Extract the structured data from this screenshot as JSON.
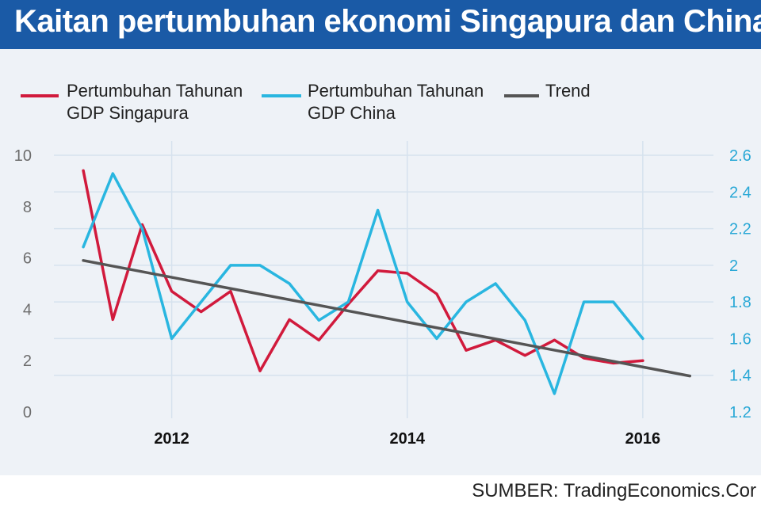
{
  "chart_data": {
    "type": "line",
    "title": "Kaitan pertumbuhan ekonomi Singapura dan China",
    "source": "SUMBER: TradingEconomics.Cor",
    "x": [
      2011.25,
      2011.5,
      2011.75,
      2012.0,
      2012.25,
      2012.5,
      2012.75,
      2013.0,
      2013.25,
      2013.5,
      2013.75,
      2014.0,
      2014.25,
      2014.5,
      2014.75,
      2015.0,
      2015.25,
      2015.5,
      2015.75,
      2016.0
    ],
    "xticks": [
      "2012",
      "2014",
      "2016"
    ],
    "xtick_values": [
      2012,
      2014,
      2016
    ],
    "xlim": [
      2011.0,
      2016.6
    ],
    "left_axis": {
      "ticks": [
        "0",
        "2",
        "4",
        "6",
        "8",
        "10"
      ],
      "ylim": [
        0,
        10
      ]
    },
    "right_axis": {
      "ticks": [
        "1.2",
        "1.4",
        "1.6",
        "1.8",
        "2",
        "2.2",
        "2.4",
        "2.6"
      ],
      "ylim": [
        1.2,
        2.6
      ]
    },
    "series": [
      {
        "name": "Pertumbuhan Tahunan GDP Singapura",
        "legend_line1": "Pertumbuhan Tahunan",
        "legend_line2": "GDP Singapura",
        "axis": "left",
        "color": "#d11a3c",
        "values": [
          9.4,
          3.6,
          7.3,
          4.7,
          3.9,
          4.7,
          1.6,
          3.6,
          2.8,
          4.2,
          5.5,
          5.4,
          4.6,
          2.4,
          2.8,
          2.2,
          2.8,
          2.1,
          1.9,
          2.0
        ]
      },
      {
        "name": "Pertumbuhan Tahunan GDP China",
        "legend_line1": "Pertumbuhan Tahunan",
        "legend_line2": "GDP China",
        "axis": "right",
        "color": "#29b6e0",
        "values": [
          2.1,
          2.5,
          2.2,
          1.6,
          1.8,
          2.0,
          2.0,
          1.9,
          1.7,
          1.8,
          2.3,
          1.8,
          1.6,
          1.8,
          1.9,
          1.7,
          1.3,
          1.8,
          1.8,
          1.6
        ]
      },
      {
        "name": "Trend",
        "legend_line1": "Trend",
        "axis": "left",
        "color": "#555555",
        "x": [
          2011.25,
          2016.4
        ],
        "values": [
          5.9,
          1.4
        ]
      }
    ]
  }
}
